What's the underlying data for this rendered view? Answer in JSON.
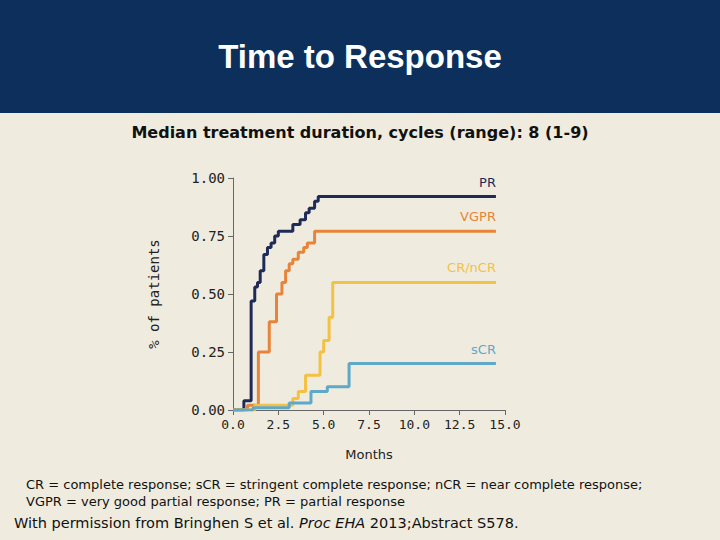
{
  "chart_data": {
    "type": "line",
    "line_style": "step",
    "title": "Time to Response",
    "subtitle": "Median treatment duration, cycles (range): 8 (1-9)",
    "x_label": "Months",
    "y_label": "% of patients",
    "xlim": [
      0,
      15
    ],
    "xticks": [
      {
        "value": 0,
        "label": "0.0"
      },
      {
        "value": 2.5,
        "label": "2.5"
      },
      {
        "value": 5,
        "label": "5.0"
      },
      {
        "value": 7.5,
        "label": "7.5"
      },
      {
        "value": 10,
        "label": "10.0"
      },
      {
        "value": 12.5,
        "label": "12.5"
      },
      {
        "value": 15,
        "label": "15.0"
      }
    ],
    "ylim": [
      0,
      1
    ],
    "yticks": [
      {
        "value": 0,
        "label": "0.00"
      },
      {
        "value": 0.25,
        "label": "0.25"
      },
      {
        "value": 0.5,
        "label": "0.50"
      },
      {
        "value": 0.75,
        "label": "0.75"
      },
      {
        "value": 1,
        "label": "1.00"
      }
    ],
    "grid": false,
    "series": [
      {
        "name": "PR",
        "color": "#1f2a58",
        "x": [
          0,
          0.6,
          1.0,
          1.2,
          1.35,
          1.5,
          1.7,
          1.9,
          2.1,
          2.3,
          2.5,
          3.3,
          3.7,
          4.0,
          4.2,
          4.5,
          4.7,
          14.5
        ],
        "values": [
          0,
          0.04,
          0.47,
          0.53,
          0.55,
          0.6,
          0.67,
          0.7,
          0.72,
          0.75,
          0.77,
          0.8,
          0.82,
          0.85,
          0.87,
          0.9,
          0.92,
          0.92
        ]
      },
      {
        "name": "VGPR",
        "color": "#e8843a",
        "x": [
          0,
          0.8,
          1.4,
          2.0,
          2.4,
          2.7,
          2.9,
          3.1,
          3.3,
          3.6,
          3.9,
          4.1,
          4.5,
          14.5
        ],
        "values": [
          0,
          0.02,
          0.25,
          0.38,
          0.5,
          0.55,
          0.6,
          0.63,
          0.65,
          0.68,
          0.7,
          0.72,
          0.77,
          0.77
        ]
      },
      {
        "name": "CR/nCR",
        "color": "#f4c143",
        "x": [
          0,
          1.2,
          3.3,
          3.6,
          4.0,
          4.8,
          5.0,
          5.3,
          5.5,
          14.5
        ],
        "values": [
          0,
          0.02,
          0.05,
          0.08,
          0.15,
          0.25,
          0.3,
          0.4,
          0.55,
          0.55
        ]
      },
      {
        "name": "sCR",
        "color": "#5fa8c8",
        "x": [
          0,
          1.1,
          3.1,
          4.3,
          5.2,
          6.4,
          14.5
        ],
        "values": [
          0,
          0.01,
          0.03,
          0.08,
          0.1,
          0.2,
          0.2
        ]
      }
    ]
  },
  "footnotes": [
    "CR = complete response; sCR = stringent complete response; nCR = near complete response;",
    "VGPR = very good partial response; PR = partial response"
  ],
  "source": {
    "before": "With permission from Bringhen S et al. ",
    "italic": "Proc EHA",
    "after": " 2013;Abstract S578."
  }
}
